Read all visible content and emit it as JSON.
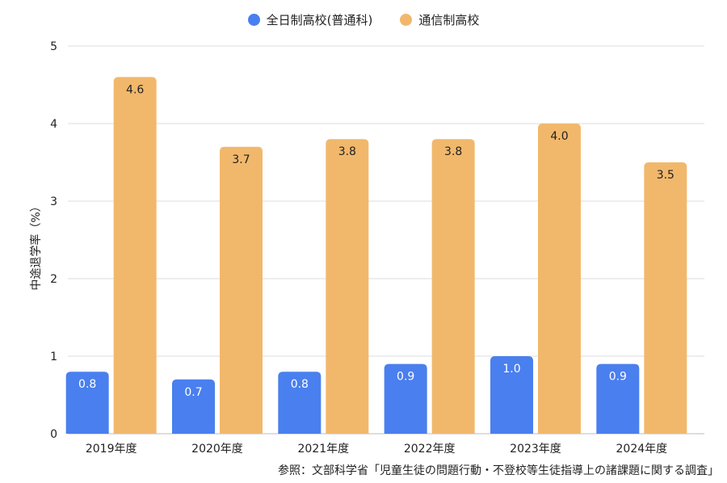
{
  "chart_data": {
    "type": "bar",
    "categories": [
      "2019年度",
      "2020年度",
      "2021年度",
      "2022年度",
      "2023年度",
      "2024年度"
    ],
    "series": [
      {
        "name": "全日制高校(普通科)",
        "values": [
          0.8,
          0.7,
          0.8,
          0.9,
          1.0,
          0.9
        ],
        "labels": [
          "0.8",
          "0.7",
          "0.8",
          "0.9",
          "1.0",
          "0.9"
        ],
        "color": "#4a7fef"
      },
      {
        "name": "通信制高校",
        "values": [
          4.6,
          3.7,
          3.8,
          3.8,
          4.0,
          3.5
        ],
        "labels": [
          "4.6",
          "3.7",
          "3.8",
          "3.8",
          "4.0",
          "3.5"
        ],
        "color": "#f1b86c"
      }
    ],
    "ylabel": "中途退学率（%）",
    "ylim": [
      0,
      5
    ],
    "yticks": [
      "0",
      "1",
      "2",
      "3",
      "4",
      "5"
    ],
    "grid": true,
    "legend_position": "top-center",
    "source_note": "参照：文部科学省「児童生徒の問題行動・不登校等生徒指導上の諸課題に関する調査」"
  }
}
